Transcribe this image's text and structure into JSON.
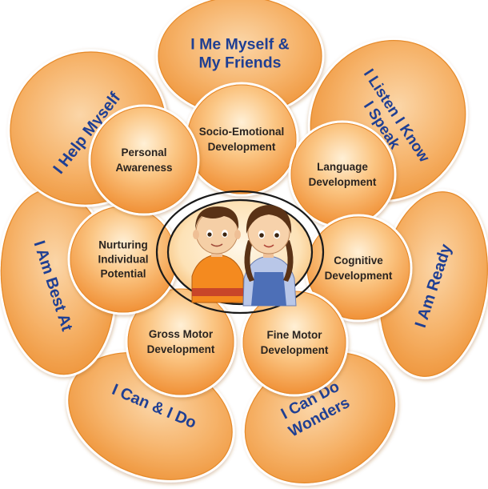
{
  "colors": {
    "petal_fill_light": "#f8c48b",
    "petal_fill_dark": "#f19a3f",
    "petal_stroke": "#ffffff",
    "petal_text": "#1f3f93",
    "circle_fill_light": "#fde1b8",
    "circle_fill_dark": "#f49c45",
    "circle_text": "#2a2420",
    "center_ring": "#1a1a1a"
  },
  "petals": [
    {
      "id": "me-myself",
      "lines": [
        "I Me Myself &",
        "My Friends"
      ]
    },
    {
      "id": "listen-know",
      "lines": [
        "I Listen I Know",
        "I Speak"
      ]
    },
    {
      "id": "ready",
      "lines": [
        "I Am Ready"
      ]
    },
    {
      "id": "can-do-wonders",
      "lines": [
        "I Can Do",
        "Wonders"
      ]
    },
    {
      "id": "can-and-do",
      "lines": [
        "I Can & I Do"
      ]
    },
    {
      "id": "best-at",
      "lines": [
        "I Am Best At"
      ]
    },
    {
      "id": "help-myself",
      "lines": [
        "I Help Myself"
      ]
    }
  ],
  "circles": [
    {
      "id": "socio-emotional",
      "lines": [
        "Socio-Emotional",
        "Development"
      ]
    },
    {
      "id": "language",
      "lines": [
        "Language",
        "Development"
      ]
    },
    {
      "id": "cognitive",
      "lines": [
        "Cognitive",
        "Development"
      ]
    },
    {
      "id": "fine-motor",
      "lines": [
        "Fine Motor",
        "Development"
      ]
    },
    {
      "id": "gross-motor",
      "lines": [
        "Gross Motor",
        "Development"
      ]
    },
    {
      "id": "nurturing",
      "lines": [
        "Nurturing",
        "Individual",
        "Potential"
      ]
    },
    {
      "id": "personal-awareness",
      "lines": [
        "Personal",
        "Awareness"
      ]
    }
  ],
  "center": {
    "figures": [
      "boy-figure",
      "girl-figure"
    ]
  }
}
